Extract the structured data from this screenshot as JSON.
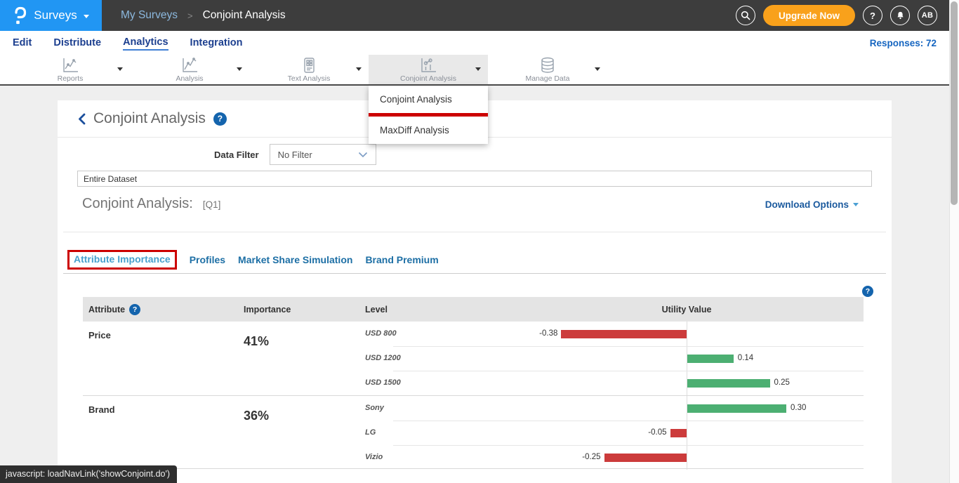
{
  "topbar": {
    "brand": "Surveys",
    "breadcrumb": {
      "parent": "My Surveys",
      "separator": ">",
      "current": "Conjoint Analysis"
    },
    "upgrade_label": "Upgrade Now",
    "help_glyph": "?",
    "avatar_initials": "AB"
  },
  "nav": {
    "items": [
      {
        "label": "Edit"
      },
      {
        "label": "Distribute"
      },
      {
        "label": "Analytics"
      },
      {
        "label": "Integration"
      }
    ],
    "active": "Analytics",
    "responses_label": "Responses: 72"
  },
  "toolbar": {
    "items": [
      {
        "label": "Reports",
        "icon": "reports-line-chart"
      },
      {
        "label": "Analysis",
        "icon": "analysis-line-chart"
      },
      {
        "label": "Text Analysis",
        "icon": "text-document"
      },
      {
        "label": "Conjoint Analysis",
        "icon": "conjoint-chart",
        "selected": true
      },
      {
        "label": "Manage Data",
        "icon": "database"
      }
    ],
    "dropdown": {
      "items": [
        {
          "label": "Conjoint Analysis",
          "annotated": true
        },
        {
          "label": "MaxDiff Analysis",
          "annotated": false
        }
      ]
    }
  },
  "page": {
    "title": "Conjoint Analysis",
    "help_glyph": "?",
    "data_filter_label": "Data Filter",
    "filter_value": "No Filter",
    "dataset_value": "Entire Dataset",
    "section_title": "Conjoint Analysis:",
    "section_ref": "[Q1]",
    "download_label": "Download Options"
  },
  "tabs": {
    "items": [
      {
        "label": "Attribute Importance"
      },
      {
        "label": "Profiles"
      },
      {
        "label": "Market Share Simulation"
      },
      {
        "label": "Brand Premium"
      }
    ],
    "active": "Attribute Importance"
  },
  "table": {
    "headers": {
      "attribute": "Attribute",
      "importance": "Importance",
      "level": "Level",
      "utility": "Utility Value"
    },
    "attribute_help_glyph": "?",
    "groups": [
      {
        "attribute": "Price",
        "importance": "41%",
        "levels": [
          {
            "name": "USD 800",
            "value": -0.38,
            "label": "-0.38"
          },
          {
            "name": "USD 1200",
            "value": 0.14,
            "label": "0.14"
          },
          {
            "name": "USD 1500",
            "value": 0.25,
            "label": "0.25"
          }
        ]
      },
      {
        "attribute": "Brand",
        "importance": "36%",
        "levels": [
          {
            "name": "Sony",
            "value": 0.3,
            "label": "0.30"
          },
          {
            "name": "LG",
            "value": -0.05,
            "label": "-0.05"
          },
          {
            "name": "Vizio",
            "value": -0.25,
            "label": "-0.25"
          }
        ]
      }
    ]
  },
  "chart_data": {
    "type": "bar",
    "orientation": "horizontal",
    "title": "Conjoint Analysis [Q1] — Attribute Importance utilities",
    "xlabel": "Utility Value",
    "axis_zero_centered": true,
    "series": [
      {
        "name": "Price (41%)",
        "categories": [
          "USD 800",
          "USD 1200",
          "USD 1500"
        ],
        "values": [
          -0.38,
          0.14,
          0.25
        ]
      },
      {
        "name": "Brand (36%)",
        "categories": [
          "Sony",
          "LG",
          "Vizio"
        ],
        "values": [
          0.3,
          -0.05,
          -0.25
        ]
      }
    ],
    "positive_color": "#4caf72",
    "negative_color": "#cc3b3b"
  },
  "statusbar": {
    "text": "javascript: loadNavLink('showConjoint.do')"
  },
  "colors": {
    "brand_blue": "#2196f3",
    "topbar_dark": "#3d3d3d",
    "upgrade_orange": "#f9a11b",
    "nav_navy": "#1c3f8f",
    "tab_active_blue": "#46a0ce",
    "tab_blue": "#1d6fa5",
    "positive_bar": "#4caf72",
    "negative_bar": "#cc3b3b",
    "annotation_red": "#cc0000"
  }
}
